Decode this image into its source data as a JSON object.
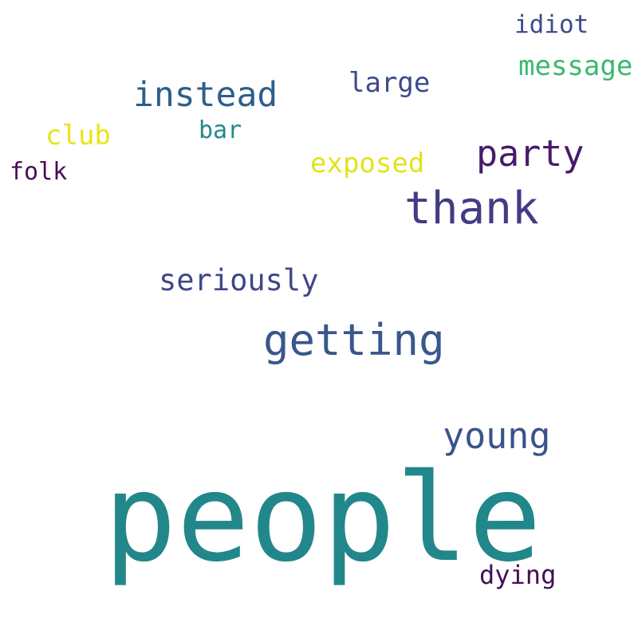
{
  "word_cloud": {
    "background_color": "#ffffff",
    "words": [
      {
        "text": "people",
        "color": "#22878b"
      },
      {
        "text": "getting",
        "color": "#39578c"
      },
      {
        "text": "thank",
        "color": "#433c84"
      },
      {
        "text": "young",
        "color": "#3b528b"
      },
      {
        "text": "instead",
        "color": "#2e5e8d"
      },
      {
        "text": "party",
        "color": "#481a6c"
      },
      {
        "text": "seriously",
        "color": "#3f4788"
      },
      {
        "text": "message",
        "color": "#3ab86f"
      },
      {
        "text": "exposed",
        "color": "#e2e418"
      },
      {
        "text": "large",
        "color": "#3e4a89"
      },
      {
        "text": "club",
        "color": "#e8e419"
      },
      {
        "text": "idiot",
        "color": "#3e4c8a"
      },
      {
        "text": "dying",
        "color": "#440f56"
      },
      {
        "text": "bar",
        "color": "#25888d"
      },
      {
        "text": "folk",
        "color": "#450e57"
      }
    ]
  }
}
